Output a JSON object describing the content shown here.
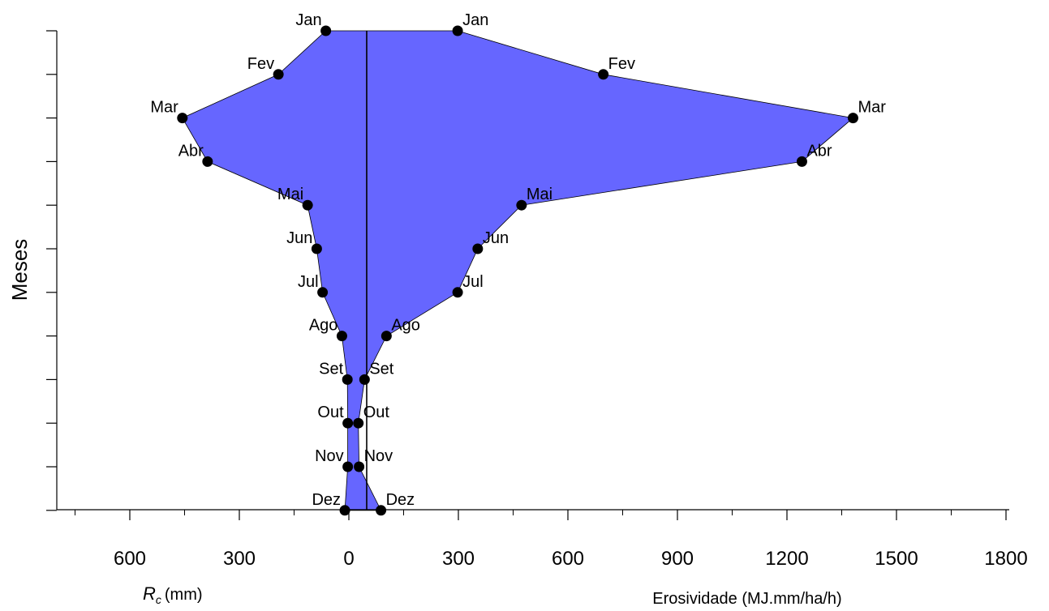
{
  "chart_data": {
    "type": "area",
    "months": [
      "Jan",
      "Fev",
      "Mar",
      "Abr",
      "Mai",
      "Jun",
      "Jul",
      "Ago",
      "Set",
      "Out",
      "Nov",
      "Dez"
    ],
    "series": [
      {
        "name": "Rc",
        "values": [
          63,
          193,
          456,
          387,
          113,
          88,
          72,
          19,
          4,
          3,
          3,
          11
        ]
      },
      {
        "name": "Erosividade",
        "values": [
          298,
          697,
          1381,
          1241,
          473,
          353,
          298,
          103,
          43,
          26,
          28,
          88
        ]
      }
    ],
    "ylabel": "Meses",
    "xlabel_left": "(mm)",
    "xlabel_left_symbol": "R",
    "xlabel_left_subscript": "c",
    "xlabel_right": "Erosividade (MJ.mm/ha/h)",
    "x_tick_labels": [
      "600",
      "300",
      "0",
      "300",
      "600",
      "900",
      "1200",
      "1500",
      "1800"
    ],
    "left_axis_range": [
      0,
      600
    ],
    "right_axis_range": [
      0,
      1800
    ],
    "fill_color": "#6666ff",
    "marker_color": "#000000",
    "grid": false
  }
}
